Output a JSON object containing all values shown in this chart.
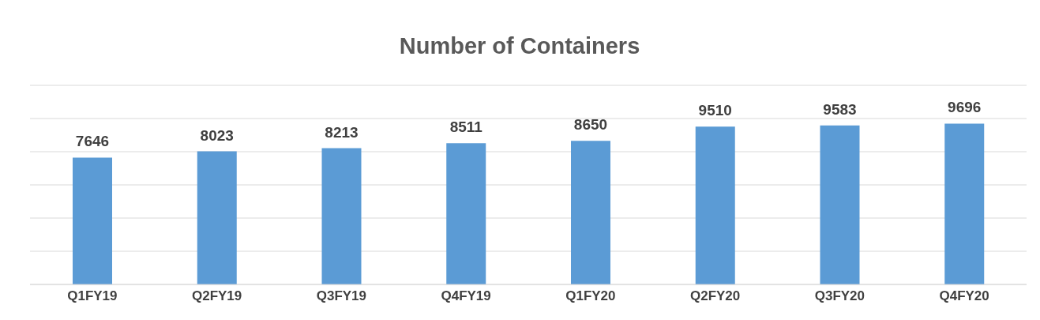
{
  "chart_data": {
    "type": "bar",
    "title": "Number of Containers",
    "categories": [
      "Q1FY19",
      "Q2FY19",
      "Q3FY19",
      "Q4FY19",
      "Q1FY20",
      "Q2FY20",
      "Q3FY20",
      "Q4FY20"
    ],
    "values": [
      7646,
      8023,
      8213,
      8511,
      8650,
      9510,
      9583,
      9696
    ],
    "color": "#5b9bd5",
    "data_labels": true,
    "ylim": [
      0,
      12000
    ],
    "yticks": [
      {
        "value": 0,
        "label": null
      },
      {
        "value": 2000,
        "label": null
      },
      {
        "value": 4000,
        "label": null
      },
      {
        "value": 6000,
        "label": null
      },
      {
        "value": 8000,
        "label": null
      },
      {
        "value": 10000,
        "label": null
      },
      {
        "value": 12000,
        "label": null
      }
    ],
    "grid": "y",
    "tick_labels": "x"
  }
}
